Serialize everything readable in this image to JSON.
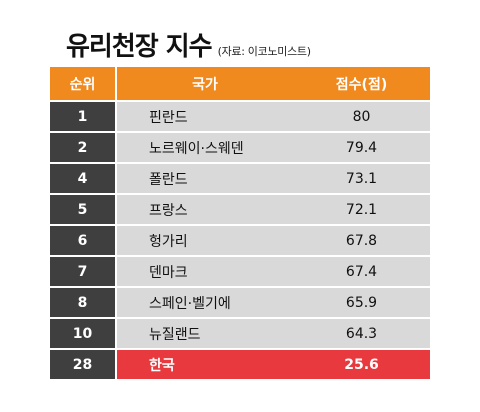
{
  "title": "유리천장 지수",
  "source": "(자료: 이코노미스트)",
  "colors": {
    "header": "#f08a1e",
    "rank_cell": "#3f3f3f",
    "row_cell": "#d9d9d9",
    "highlight": "#e8393e"
  },
  "table": {
    "headers": [
      "순위",
      "국가",
      "점수(점)"
    ],
    "rows": [
      {
        "rank": "1",
        "country": "핀란드",
        "score": "80"
      },
      {
        "rank": "2",
        "country": "노르웨이·스웨덴",
        "score": "79.4"
      },
      {
        "rank": "4",
        "country": "폴란드",
        "score": "73.1"
      },
      {
        "rank": "5",
        "country": "프랑스",
        "score": "72.1"
      },
      {
        "rank": "6",
        "country": "헝가리",
        "score": "67.8"
      },
      {
        "rank": "7",
        "country": "덴마크",
        "score": "67.4"
      },
      {
        "rank": "8",
        "country": "스페인·벨기에",
        "score": "65.9"
      },
      {
        "rank": "10",
        "country": "뉴질랜드",
        "score": "64.3"
      },
      {
        "rank": "28",
        "country": "한국",
        "score": "25.6",
        "highlight": true
      }
    ]
  }
}
